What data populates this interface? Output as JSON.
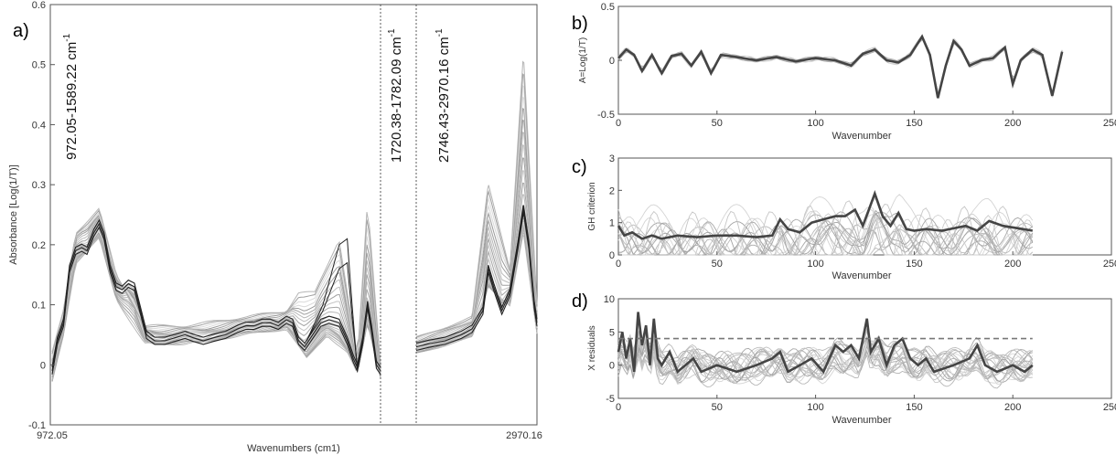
{
  "chart_data": [
    {
      "panel_label": "a)",
      "type": "line",
      "xlabel": "Wavenumbers (cm1)",
      "ylabel": "Absorbance [Log(1/T)]",
      "x_tick_labels": [
        "972.05",
        "2970.16"
      ],
      "xlim": [
        972.05,
        2970.16
      ],
      "ylim": [
        -0.1,
        0.6
      ],
      "y_ticks": [
        -0.1,
        0,
        0.1,
        0.2,
        0.3,
        0.4,
        0.5,
        0.6
      ],
      "y_tick_labels": [
        "-0.1",
        "0",
        "0.1",
        "0.2",
        "0.3",
        "0.4",
        "0.5",
        "0.6"
      ],
      "grid": false,
      "region_labels": [
        {
          "text": "972.05-1589.22 cm",
          "sup": "-1"
        },
        {
          "text": "1720.38-1782.09 cm",
          "sup": "-1"
        },
        {
          "text": "2746.43-2970.16 cm",
          "sup": "-1"
        }
      ],
      "region_boundaries_x": [
        1782.09,
        2746.43
      ],
      "mean_spectrum": {
        "points": [
          [
            972.05,
            -0.01
          ],
          [
            985,
            0.04
          ],
          [
            1000,
            0.07
          ],
          [
            1015,
            0.16
          ],
          [
            1030,
            0.19
          ],
          [
            1045,
            0.195
          ],
          [
            1058,
            0.19
          ],
          [
            1075,
            0.22
          ],
          [
            1088,
            0.235
          ],
          [
            1100,
            0.215
          ],
          [
            1115,
            0.16
          ],
          [
            1130,
            0.13
          ],
          [
            1145,
            0.125
          ],
          [
            1160,
            0.135
          ],
          [
            1175,
            0.13
          ],
          [
            1190,
            0.09
          ],
          [
            1205,
            0.05
          ],
          [
            1225,
            0.04
          ],
          [
            1250,
            0.04
          ],
          [
            1275,
            0.045
          ],
          [
            1300,
            0.05
          ],
          [
            1320,
            0.045
          ],
          [
            1345,
            0.04
          ],
          [
            1370,
            0.045
          ],
          [
            1400,
            0.05
          ],
          [
            1430,
            0.06
          ],
          [
            1450,
            0.065
          ],
          [
            1470,
            0.065
          ],
          [
            1490,
            0.07
          ],
          [
            1510,
            0.07
          ],
          [
            1530,
            0.065
          ],
          [
            1550,
            0.075
          ],
          [
            1565,
            0.07
          ],
          [
            1580,
            0.04
          ],
          [
            1595,
            0.03
          ],
          [
            1615,
            0.05
          ],
          [
            1635,
            0.07
          ],
          [
            1655,
            0.075
          ],
          [
            1680,
            0.07
          ],
          [
            1700,
            0.04
          ],
          [
            1715,
            0.01
          ],
          [
            1725,
            -0.005
          ],
          [
            1738,
            0.04
          ],
          [
            1750,
            0.1
          ],
          [
            1760,
            0.06
          ],
          [
            1772,
            0.0
          ],
          [
            1782.09,
            -0.01
          ]
        ],
        "points_hi": [
          [
            2746.43,
            0.03
          ],
          [
            2770,
            0.035
          ],
          [
            2800,
            0.04
          ],
          [
            2830,
            0.05
          ],
          [
            2850,
            0.06
          ],
          [
            2870,
            0.09
          ],
          [
            2880,
            0.16
          ],
          [
            2890,
            0.13
          ],
          [
            2905,
            0.09
          ],
          [
            2920,
            0.12
          ],
          [
            2935,
            0.2
          ],
          [
            2945,
            0.26
          ],
          [
            2955,
            0.2
          ],
          [
            2965,
            0.1
          ],
          [
            2970.16,
            0.07
          ]
        ]
      },
      "range_envelope": {
        "low_region": [
          [
            972.05,
            -0.03
          ],
          [
            1000,
            0.05
          ],
          [
            1030,
            0.17
          ],
          [
            1088,
            0.21
          ],
          [
            1130,
            0.11
          ],
          [
            1200,
            0.035
          ],
          [
            1300,
            0.035
          ],
          [
            1450,
            0.05
          ],
          [
            1550,
            0.06
          ],
          [
            1600,
            0.01
          ],
          [
            1650,
            0.05
          ],
          [
            1700,
            0.02
          ],
          [
            1725,
            -0.015
          ],
          [
            1750,
            0.07
          ],
          [
            1782.09,
            -0.02
          ]
        ],
        "high_region": [
          [
            972.05,
            0.02
          ],
          [
            1000,
            0.09
          ],
          [
            1030,
            0.22
          ],
          [
            1088,
            0.26
          ],
          [
            1130,
            0.15
          ],
          [
            1200,
            0.065
          ],
          [
            1300,
            0.065
          ],
          [
            1450,
            0.08
          ],
          [
            1550,
            0.09
          ],
          [
            1580,
            0.12
          ],
          [
            1620,
            0.12
          ],
          [
            1680,
            0.21
          ],
          [
            1725,
            0.01
          ],
          [
            1750,
            0.27
          ],
          [
            1782.09,
            0.0
          ]
        ],
        "low_hi": [
          [
            2746.43,
            0.02
          ],
          [
            2850,
            0.045
          ],
          [
            2880,
            0.13
          ],
          [
            2920,
            0.1
          ],
          [
            2945,
            0.22
          ],
          [
            2970.16,
            0.05
          ]
        ],
        "high_hi": [
          [
            2746.43,
            0.045
          ],
          [
            2850,
            0.08
          ],
          [
            2880,
            0.3
          ],
          [
            2920,
            0.16
          ],
          [
            2945,
            0.52
          ],
          [
            2970.16,
            0.1
          ]
        ]
      }
    },
    {
      "panel_label": "b)",
      "type": "line",
      "xlabel": "Wavenumber",
      "ylabel": "A=Log(1/T)",
      "xlim": [
        0,
        250
      ],
      "x_ticks": [
        0,
        50,
        100,
        150,
        200,
        250
      ],
      "ylim": [
        -0.5,
        0.5
      ],
      "y_ticks": [
        -0.5,
        0,
        0.5
      ],
      "y_tick_labels": [
        "-0.5",
        "0",
        "0.5"
      ],
      "grid": false,
      "mean_curve": [
        [
          0,
          0.02
        ],
        [
          4,
          0.1
        ],
        [
          8,
          0.05
        ],
        [
          12,
          -0.1
        ],
        [
          17,
          0.05
        ],
        [
          22,
          -0.12
        ],
        [
          27,
          0.04
        ],
        [
          32,
          0.06
        ],
        [
          37,
          -0.05
        ],
        [
          42,
          0.08
        ],
        [
          47,
          -0.12
        ],
        [
          52,
          0.05
        ],
        [
          60,
          0.03
        ],
        [
          70,
          0.0
        ],
        [
          80,
          0.03
        ],
        [
          90,
          -0.01
        ],
        [
          100,
          0.02
        ],
        [
          110,
          0.0
        ],
        [
          118,
          -0.05
        ],
        [
          124,
          0.06
        ],
        [
          130,
          0.1
        ],
        [
          136,
          0.0
        ],
        [
          142,
          -0.02
        ],
        [
          148,
          0.05
        ],
        [
          154,
          0.22
        ],
        [
          158,
          0.05
        ],
        [
          162,
          -0.35
        ],
        [
          166,
          -0.05
        ],
        [
          170,
          0.18
        ],
        [
          174,
          0.1
        ],
        [
          178,
          -0.05
        ],
        [
          184,
          0.0
        ],
        [
          190,
          0.02
        ],
        [
          196,
          0.12
        ],
        [
          200,
          -0.22
        ],
        [
          204,
          0.0
        ],
        [
          210,
          0.1
        ],
        [
          215,
          0.05
        ],
        [
          220,
          -0.33
        ],
        [
          225,
          0.08
        ]
      ]
    },
    {
      "panel_label": "c)",
      "type": "line",
      "xlabel": "Wavenumber",
      "ylabel": "GH criterion",
      "xlim": [
        0,
        250
      ],
      "x_ticks": [
        0,
        50,
        100,
        150,
        200,
        250
      ],
      "ylim": [
        0,
        3
      ],
      "y_ticks": [
        0,
        1,
        2,
        3
      ],
      "grid": false,
      "mean_curve": [
        [
          0,
          0.9
        ],
        [
          3,
          0.6
        ],
        [
          7,
          0.7
        ],
        [
          12,
          0.5
        ],
        [
          17,
          0.6
        ],
        [
          22,
          0.5
        ],
        [
          30,
          0.6
        ],
        [
          40,
          0.55
        ],
        [
          50,
          0.6
        ],
        [
          60,
          0.6
        ],
        [
          70,
          0.55
        ],
        [
          78,
          0.6
        ],
        [
          82,
          1.1
        ],
        [
          86,
          0.8
        ],
        [
          92,
          0.7
        ],
        [
          98,
          1.0
        ],
        [
          104,
          1.1
        ],
        [
          110,
          1.2
        ],
        [
          115,
          1.2
        ],
        [
          120,
          1.4
        ],
        [
          124,
          0.9
        ],
        [
          130,
          1.9
        ],
        [
          134,
          1.2
        ],
        [
          138,
          0.9
        ],
        [
          142,
          1.3
        ],
        [
          146,
          0.8
        ],
        [
          150,
          0.75
        ],
        [
          156,
          0.8
        ],
        [
          164,
          0.75
        ],
        [
          172,
          0.85
        ],
        [
          176,
          0.9
        ],
        [
          182,
          0.75
        ],
        [
          188,
          1.05
        ],
        [
          195,
          0.9
        ],
        [
          205,
          0.8
        ],
        [
          210,
          0.75
        ]
      ]
    },
    {
      "panel_label": "d)",
      "type": "line",
      "xlabel": "Wavenumber",
      "ylabel": "X residuals",
      "xlim": [
        0,
        250
      ],
      "x_ticks": [
        0,
        50,
        100,
        150,
        200,
        250
      ],
      "ylim": [
        -5,
        10
      ],
      "y_ticks": [
        -5,
        0,
        5,
        10
      ],
      "grid": false,
      "threshold": 4,
      "mean_curve": [
        [
          0,
          2
        ],
        [
          2,
          5
        ],
        [
          4,
          1
        ],
        [
          6,
          4
        ],
        [
          8,
          -1
        ],
        [
          10,
          8
        ],
        [
          12,
          3
        ],
        [
          14,
          6
        ],
        [
          16,
          0
        ],
        [
          18,
          7
        ],
        [
          20,
          1
        ],
        [
          22,
          0
        ],
        [
          26,
          2
        ],
        [
          30,
          -1
        ],
        [
          34,
          0
        ],
        [
          38,
          1
        ],
        [
          42,
          -1
        ],
        [
          50,
          0
        ],
        [
          60,
          -1
        ],
        [
          70,
          0
        ],
        [
          78,
          1
        ],
        [
          82,
          2
        ],
        [
          86,
          -1
        ],
        [
          92,
          0
        ],
        [
          98,
          1
        ],
        [
          104,
          -1
        ],
        [
          110,
          3
        ],
        [
          114,
          2
        ],
        [
          118,
          3
        ],
        [
          122,
          1
        ],
        [
          126,
          7
        ],
        [
          128,
          2
        ],
        [
          132,
          4
        ],
        [
          136,
          0
        ],
        [
          140,
          3
        ],
        [
          144,
          4
        ],
        [
          148,
          1
        ],
        [
          152,
          0
        ],
        [
          156,
          1
        ],
        [
          160,
          -1
        ],
        [
          170,
          0
        ],
        [
          178,
          1
        ],
        [
          182,
          3
        ],
        [
          186,
          0
        ],
        [
          192,
          -1
        ],
        [
          200,
          0
        ],
        [
          206,
          -1
        ],
        [
          210,
          0
        ]
      ]
    }
  ]
}
